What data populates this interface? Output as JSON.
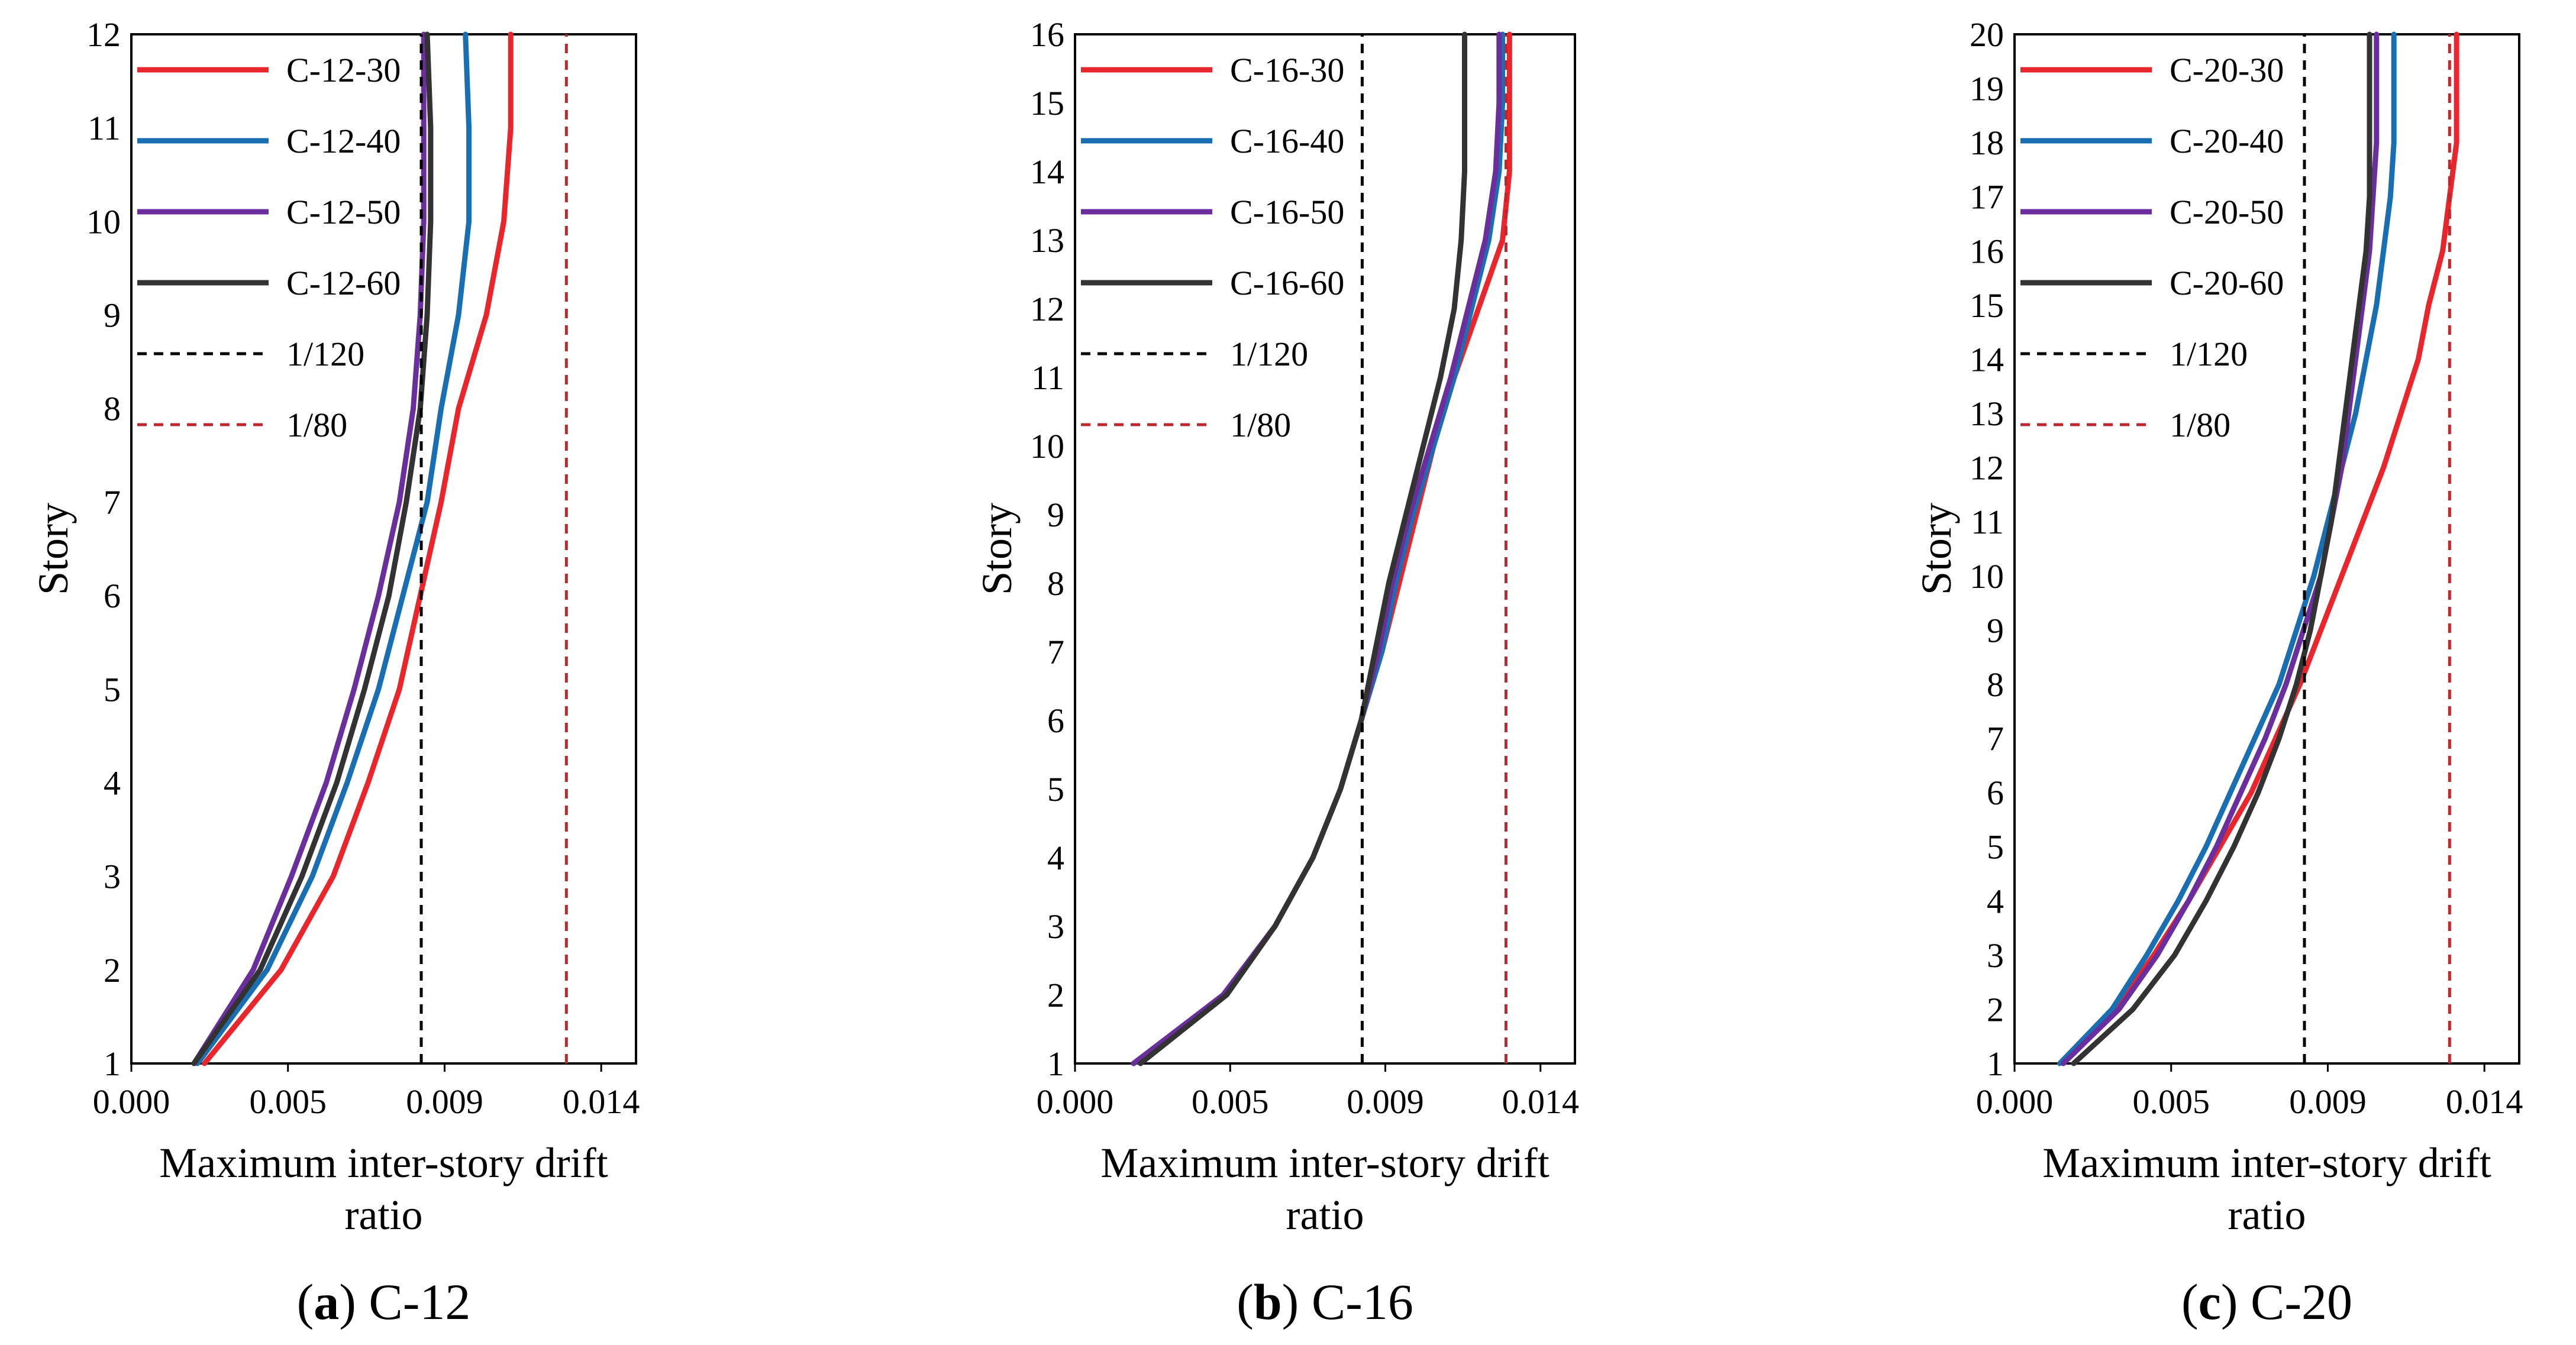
{
  "chart_data": [
    {
      "type": "line",
      "panel_label": "a",
      "caption": "C-12",
      "xlabel_line1": "Maximum inter-story drift",
      "xlabel_line2": "ratio",
      "ylabel": "Story",
      "xlim": [
        0,
        0.0145
      ],
      "ylim": [
        1,
        12
      ],
      "xticks": [
        0,
        0.0045,
        0.009,
        0.0135
      ],
      "xtick_labels": [
        "0.000",
        "0.005",
        "0.009",
        "0.014"
      ],
      "yticks": [
        1,
        2,
        3,
        4,
        5,
        6,
        7,
        8,
        9,
        10,
        11,
        12
      ],
      "ytick_labels": [
        "1",
        "2",
        "3",
        "4",
        "5",
        "6",
        "7",
        "8",
        "9",
        "10",
        "11",
        "12"
      ],
      "legend_position": "top-left",
      "series": [
        {
          "name": "C-12-30",
          "color": "#e8262b",
          "style": "solid",
          "y": [
            1,
            2,
            3,
            4,
            5,
            6,
            7,
            8,
            9,
            10,
            11,
            12
          ],
          "x": [
            0.0021,
            0.0043,
            0.0058,
            0.0068,
            0.0077,
            0.0083,
            0.0089,
            0.0094,
            0.0102,
            0.0107,
            0.0109,
            0.0109
          ]
        },
        {
          "name": "C-12-40",
          "color": "#1a6fb3",
          "style": "solid",
          "y": [
            1,
            2,
            3,
            4,
            5,
            6,
            7,
            8,
            9,
            10,
            11,
            12
          ],
          "x": [
            0.0019,
            0.0039,
            0.0052,
            0.0062,
            0.0071,
            0.0078,
            0.0085,
            0.0089,
            0.0094,
            0.0097,
            0.0097,
            0.0096
          ]
        },
        {
          "name": "C-12-50",
          "color": "#6a2f9c",
          "style": "solid",
          "y": [
            1,
            2,
            3,
            4,
            5,
            6,
            7,
            8,
            9,
            10,
            11,
            12
          ],
          "x": [
            0.0018,
            0.0035,
            0.0046,
            0.0056,
            0.0064,
            0.0071,
            0.0077,
            0.0081,
            0.0083,
            0.0084,
            0.0084,
            0.0084
          ]
        },
        {
          "name": "C-12-60",
          "color": "#333333",
          "style": "solid",
          "y": [
            1,
            2,
            3,
            4,
            5,
            6,
            7,
            8,
            9,
            10,
            11,
            12
          ],
          "x": [
            0.0018,
            0.0037,
            0.0049,
            0.0059,
            0.0067,
            0.0074,
            0.0079,
            0.0083,
            0.0085,
            0.0086,
            0.0086,
            0.0085
          ]
        },
        {
          "name": "1/120",
          "color": "#000000",
          "style": "dashed",
          "y": [
            1,
            12
          ],
          "x": [
            0.00833,
            0.00833
          ]
        },
        {
          "name": "1/80",
          "color": "#c0272d",
          "style": "dashed",
          "y": [
            1,
            12
          ],
          "x": [
            0.0125,
            0.0125
          ]
        }
      ]
    },
    {
      "type": "line",
      "panel_label": "b",
      "caption": "C-16",
      "xlabel_line1": "Maximum inter-story drift",
      "xlabel_line2": "ratio",
      "ylabel": "Story",
      "xlim": [
        0,
        0.0145
      ],
      "ylim": [
        1,
        16
      ],
      "xticks": [
        0,
        0.0045,
        0.009,
        0.0135
      ],
      "xtick_labels": [
        "0.000",
        "0.005",
        "0.009",
        "0.014"
      ],
      "yticks": [
        1,
        2,
        3,
        4,
        5,
        6,
        7,
        8,
        9,
        10,
        11,
        12,
        13,
        14,
        15,
        16
      ],
      "ytick_labels": [
        "1",
        "2",
        "3",
        "4",
        "5",
        "6",
        "7",
        "8",
        "9",
        "10",
        "11",
        "12",
        "13",
        "14",
        "15",
        "16"
      ],
      "legend_position": "top-left",
      "series": [
        {
          "name": "C-16-30",
          "color": "#e8262b",
          "style": "solid",
          "y": [
            1,
            2,
            3,
            4,
            5,
            6,
            7,
            8,
            9,
            10,
            11,
            12,
            13,
            14,
            15,
            16
          ],
          "x": [
            0.0017,
            0.0043,
            0.0058,
            0.0069,
            0.0077,
            0.0083,
            0.0089,
            0.0094,
            0.0099,
            0.0104,
            0.011,
            0.0117,
            0.0124,
            0.0126,
            0.0126,
            0.0126
          ]
        },
        {
          "name": "C-16-40",
          "color": "#1a6fb3",
          "style": "solid",
          "y": [
            1,
            2,
            3,
            4,
            5,
            6,
            7,
            8,
            9,
            10,
            11,
            12,
            13,
            14,
            15,
            16
          ],
          "x": [
            0.0017,
            0.0043,
            0.0058,
            0.0069,
            0.0077,
            0.0083,
            0.0089,
            0.0093,
            0.0098,
            0.0104,
            0.011,
            0.0115,
            0.012,
            0.0123,
            0.0124,
            0.0124
          ]
        },
        {
          "name": "C-16-50",
          "color": "#6a2f9c",
          "style": "solid",
          "y": [
            1,
            2,
            3,
            4,
            5,
            6,
            7,
            8,
            9,
            10,
            11,
            12,
            13,
            14,
            15,
            16
          ],
          "x": [
            0.0017,
            0.0043,
            0.0058,
            0.0069,
            0.0077,
            0.0083,
            0.0088,
            0.0092,
            0.0097,
            0.0103,
            0.0109,
            0.0114,
            0.0119,
            0.0122,
            0.0123,
            0.0123
          ]
        },
        {
          "name": "C-16-60",
          "color": "#333333",
          "style": "solid",
          "y": [
            1,
            2,
            3,
            4,
            5,
            6,
            7,
            8,
            9,
            10,
            11,
            12,
            13,
            14,
            15,
            16
          ],
          "x": [
            0.0019,
            0.0044,
            0.0058,
            0.0069,
            0.0077,
            0.0083,
            0.0087,
            0.0091,
            0.0096,
            0.0101,
            0.0106,
            0.011,
            0.0112,
            0.0113,
            0.0113,
            0.0113
          ]
        },
        {
          "name": "1/120",
          "color": "#000000",
          "style": "dashed",
          "y": [
            1,
            16
          ],
          "x": [
            0.00833,
            0.00833
          ]
        },
        {
          "name": "1/80",
          "color": "#c0272d",
          "style": "dashed",
          "y": [
            1,
            16
          ],
          "x": [
            0.0125,
            0.0125
          ]
        }
      ]
    },
    {
      "type": "line",
      "panel_label": "c",
      "caption": "C-20",
      "xlabel_line1": "Maximum inter-story drift",
      "xlabel_line2": "ratio",
      "ylabel": "Story",
      "xlim": [
        0,
        0.0145
      ],
      "ylim": [
        1,
        20
      ],
      "xticks": [
        0,
        0.0045,
        0.009,
        0.0135
      ],
      "xtick_labels": [
        "0.000",
        "0.005",
        "0.009",
        "0.014"
      ],
      "yticks": [
        1,
        2,
        3,
        4,
        5,
        6,
        7,
        8,
        9,
        10,
        11,
        12,
        13,
        14,
        15,
        16,
        17,
        18,
        19,
        20
      ],
      "ytick_labels": [
        "1",
        "2",
        "3",
        "4",
        "5",
        "6",
        "7",
        "8",
        "9",
        "10",
        "11",
        "12",
        "13",
        "14",
        "15",
        "16",
        "17",
        "18",
        "19",
        "20"
      ],
      "legend_position": "top-left",
      "series": [
        {
          "name": "C-20-30",
          "color": "#e8262b",
          "style": "solid",
          "y": [
            1,
            2,
            3,
            4,
            5,
            6,
            7,
            8,
            9,
            10,
            11,
            12,
            13,
            14,
            15,
            16,
            17,
            18,
            19,
            20
          ],
          "x": [
            0.0014,
            0.0029,
            0.004,
            0.005,
            0.0059,
            0.0068,
            0.0075,
            0.0082,
            0.0088,
            0.0094,
            0.01,
            0.0106,
            0.0111,
            0.0116,
            0.0119,
            0.0123,
            0.0125,
            0.0127,
            0.0127,
            0.0127
          ]
        },
        {
          "name": "C-20-40",
          "color": "#1a6fb3",
          "style": "solid",
          "y": [
            1,
            2,
            3,
            4,
            5,
            6,
            7,
            8,
            9,
            10,
            11,
            12,
            13,
            14,
            15,
            16,
            17,
            18,
            19,
            20
          ],
          "x": [
            0.0013,
            0.0028,
            0.0038,
            0.0047,
            0.0055,
            0.0062,
            0.0069,
            0.0076,
            0.0081,
            0.0086,
            0.009,
            0.0094,
            0.0098,
            0.0101,
            0.0104,
            0.0106,
            0.0108,
            0.0109,
            0.0109,
            0.0109
          ]
        },
        {
          "name": "C-20-50",
          "color": "#6a2f9c",
          "style": "solid",
          "y": [
            1,
            2,
            3,
            4,
            5,
            6,
            7,
            8,
            9,
            10,
            11,
            12,
            13,
            14,
            15,
            16,
            17,
            18,
            19,
            20
          ],
          "x": [
            0.0014,
            0.003,
            0.0041,
            0.005,
            0.0058,
            0.0065,
            0.0072,
            0.0078,
            0.0083,
            0.0088,
            0.0091,
            0.0094,
            0.0096,
            0.0098,
            0.01,
            0.0102,
            0.0103,
            0.0104,
            0.0104,
            0.0104
          ]
        },
        {
          "name": "C-20-60",
          "color": "#333333",
          "style": "solid",
          "y": [
            1,
            2,
            3,
            4,
            5,
            6,
            7,
            8,
            9,
            10,
            11,
            12,
            13,
            14,
            15,
            16,
            17,
            18,
            19,
            20
          ],
          "x": [
            0.0017,
            0.0034,
            0.0046,
            0.0055,
            0.0063,
            0.007,
            0.0076,
            0.0081,
            0.0085,
            0.0088,
            0.0091,
            0.0093,
            0.0095,
            0.0097,
            0.0099,
            0.0101,
            0.0102,
            0.0102,
            0.0102,
            0.0102
          ]
        },
        {
          "name": "1/120",
          "color": "#000000",
          "style": "dashed",
          "y": [
            1,
            20
          ],
          "x": [
            0.00833,
            0.00833
          ]
        },
        {
          "name": "1/80",
          "color": "#c0272d",
          "style": "dashed",
          "y": [
            1,
            20
          ],
          "x": [
            0.0125,
            0.0125
          ]
        }
      ]
    }
  ]
}
